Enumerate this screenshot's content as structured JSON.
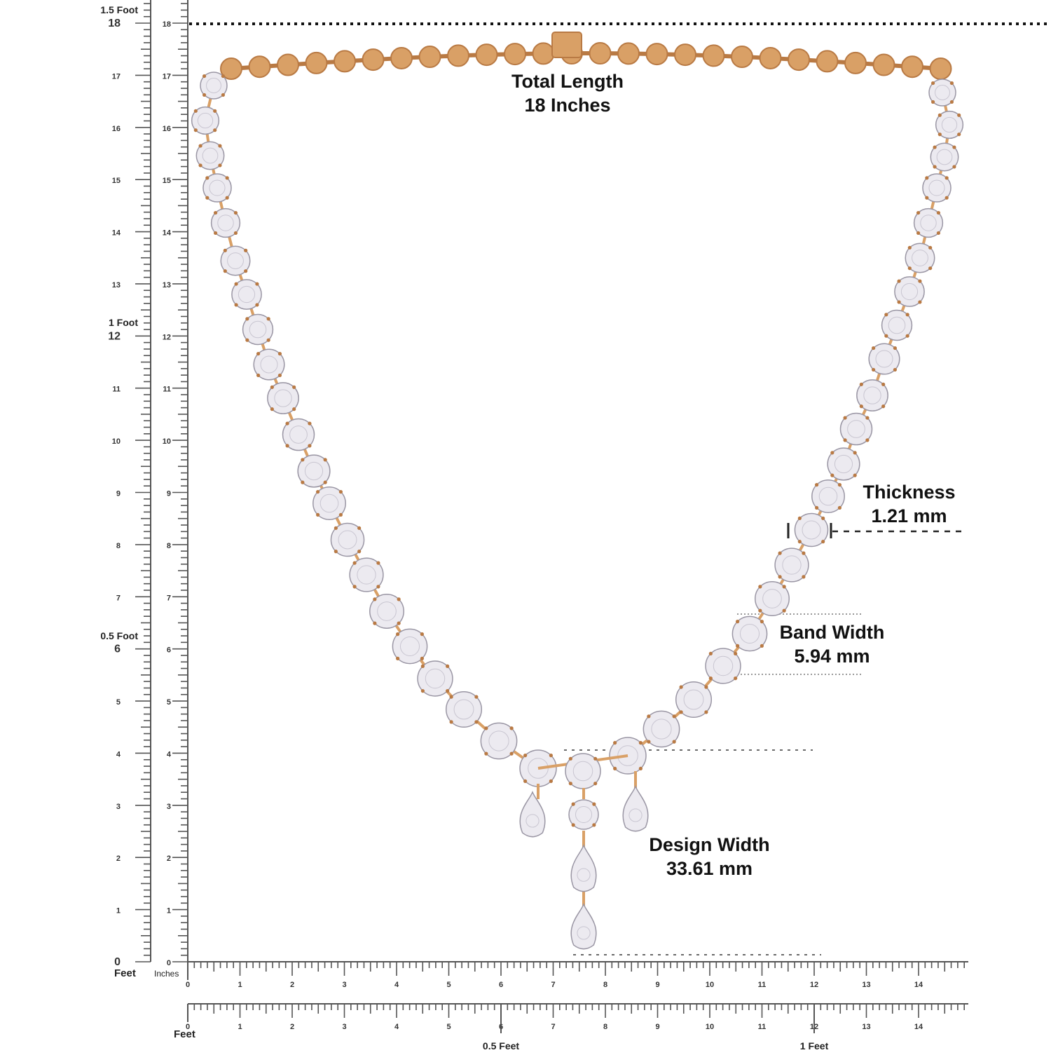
{
  "annotations": {
    "total_length": {
      "title": "Total Length",
      "value": "18 Inches"
    },
    "thickness": {
      "title": "Thickness",
      "value": "1.21 mm"
    },
    "band_width": {
      "title": "Band Width",
      "value": "5.94 mm"
    },
    "design_width": {
      "title": "Design Width",
      "value": "33.61 mm"
    }
  },
  "vertical_ruler": {
    "feet_axis_label": "Feet",
    "inches_axis_label": "Inches",
    "feet_marks": [
      {
        "inch": 18,
        "label": "1.5 Foot"
      },
      {
        "inch": 12,
        "label": "1 Foot"
      },
      {
        "inch": 6,
        "label": "0.5 Foot"
      }
    ],
    "inch_labels": [
      "0",
      "1",
      "2",
      "3",
      "4",
      "5",
      "6",
      "7",
      "8",
      "9",
      "10",
      "11",
      "12",
      "13",
      "14",
      "15",
      "16",
      "17",
      "18"
    ]
  },
  "horizontal_ruler_inches": {
    "inch_labels": [
      "0",
      "1",
      "2",
      "3",
      "4",
      "5",
      "6",
      "7",
      "8",
      "9",
      "10",
      "11",
      "12",
      "13",
      "14"
    ]
  },
  "horizontal_ruler_feet": {
    "axis_label": "Feet",
    "inch_labels": [
      "0",
      "1",
      "2",
      "3",
      "4",
      "5",
      "6",
      "7",
      "8",
      "9",
      "10",
      "11",
      "12",
      "13",
      "14"
    ],
    "feet_marks": [
      {
        "inch": 6,
        "label": "0.5 Feet"
      },
      {
        "inch": 12,
        "label": "1 Feet"
      }
    ]
  },
  "colors": {
    "gold": "#d9a066",
    "gold_dark": "#b97a44",
    "diamond": "#eceaf0",
    "diamond_edge": "#9a96a4",
    "ruler": "#555555",
    "text": "#111111"
  }
}
